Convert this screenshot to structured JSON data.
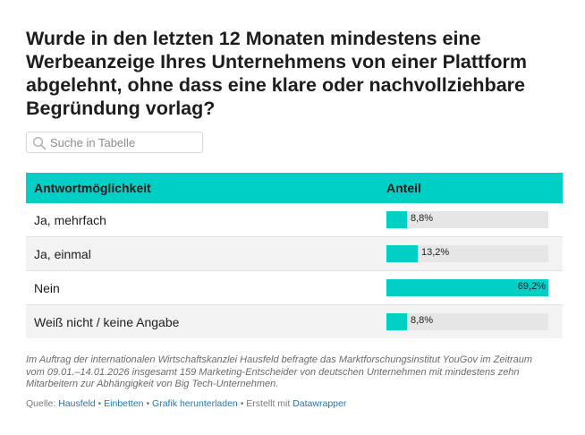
{
  "title": "Wurde in den letzten 12 Monaten mindestens eine Werbeanzeige Ihres Unternehmens von einer Plattform abgelehnt, ohne dass eine klare oder nachvollziehbare Begründung vorlag?",
  "search": {
    "placeholder": "Suche in Tabelle",
    "icon": "search-icon"
  },
  "chart_data": {
    "type": "table",
    "columns": [
      "Antwortmöglichkeit",
      "Anteil"
    ],
    "categories": [
      "Ja, mehrfach",
      "Ja, einmal",
      "Nein",
      "Weiß nicht / keine Angabe"
    ],
    "values": [
      8.8,
      13.2,
      69.2,
      8.8
    ],
    "labels": [
      "8,8%",
      "13,2%",
      "69,2%",
      "8,8%"
    ],
    "bar_max": 69.2,
    "colors": {
      "header": "#00cfc6",
      "bar": "#00cfc6",
      "track": "#e6e6e6",
      "stripe": "#f3f3f3"
    }
  },
  "note": "Im Auftrag der internationalen Wirtschaftskanzlei Hausfeld befragte das Marktforschungsinstitut YouGov im Zeitraum vom 09.01.–14.01.2026 insgesamt 159 Marketing-Entscheider von deutschen Unternehmen mit mindestens zehn Mitarbeitern zur Abhängigkeit von Big Tech-Unternehmen.",
  "footer": {
    "source_prefix": "Quelle: ",
    "source": "Hausfeld",
    "sep": " • ",
    "embed": "Einbetten",
    "download": "Grafik herunterladen",
    "created": "Erstellt mit ",
    "tool": "Datawrapper"
  }
}
